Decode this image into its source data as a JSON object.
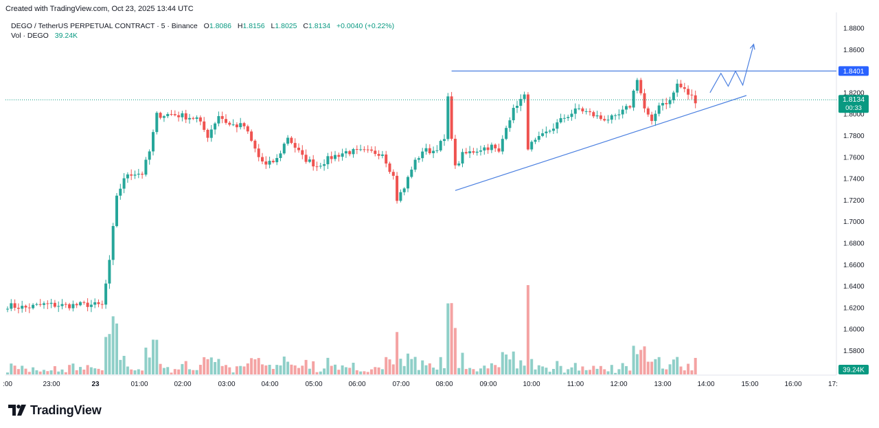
{
  "header": {
    "created_by": "Created with TradingView.com, Oct 23, 2025 13:44 UTC"
  },
  "legend": {
    "symbol": "DEGO / TetherUS PERPETUAL CONTRACT · 5 · Binance",
    "open_label": "O",
    "open_value": "1.8086",
    "high_label": "H",
    "high_value": "1.8156",
    "low_label": "L",
    "low_value": "1.8025",
    "close_label": "C",
    "close_value": "1.8134",
    "change": "+0.0040 (+0.22%)",
    "volume_label": "Vol · DEGO",
    "volume_value": "39.24K"
  },
  "colors": {
    "up": "#26a69a",
    "down": "#ef5350",
    "up_volume": "#8fcfc8",
    "down_volume": "#f4a3a3",
    "drawing": "#4a7fe0",
    "price_badge_blue": "#2962ff",
    "price_badge_green": "#089981"
  },
  "price_badges": {
    "resistance": "1.8401",
    "last_price": "1.8134",
    "countdown": "00:33",
    "volume": "39.24K"
  },
  "brand": {
    "name": "TradingView"
  },
  "chart_data": {
    "type": "candlestick",
    "timeframe": "5",
    "y_axis": {
      "ticks": [
        "1.8800",
        "1.8600",
        "1.8200",
        "1.8000",
        "1.7800",
        "1.7600",
        "1.7400",
        "1.7200",
        "1.7000",
        "1.6800",
        "1.6600",
        "1.6400",
        "1.6200",
        "1.6000",
        "1.5800"
      ],
      "range": [
        1.5654,
        1.8882
      ]
    },
    "x_axis": {
      "ticks": [
        ":00",
        "23:00",
        "23",
        "01:00",
        "02:00",
        "03:00",
        "04:00",
        "05:00",
        "06:00",
        "07:00",
        "08:00",
        "09:00",
        "10:00",
        "11:00",
        "12:00",
        "13:00",
        "14:00",
        "15:00",
        "16:00",
        "17:"
      ],
      "bold_ticks": [
        "23"
      ]
    },
    "anchors": [
      [
        "21:55",
        1.622
      ],
      [
        "22:20",
        1.62
      ],
      [
        "22:45",
        1.623
      ],
      [
        "23:15",
        1.622
      ],
      [
        "23:45",
        1.623
      ],
      [
        "00:05",
        1.622
      ],
      [
        "00:15",
        1.662
      ],
      [
        "00:25",
        1.725
      ],
      [
        "00:40",
        1.745
      ],
      [
        "01:00",
        1.745
      ],
      [
        "01:10",
        1.765
      ],
      [
        "01:20",
        1.799
      ],
      [
        "01:40",
        1.8
      ],
      [
        "01:50",
        1.799
      ],
      [
        "02:15",
        1.796
      ],
      [
        "02:30",
        1.78
      ],
      [
        "02:45",
        1.799
      ],
      [
        "03:00",
        1.79
      ],
      [
        "03:20",
        1.789
      ],
      [
        "03:40",
        1.76
      ],
      [
        "03:50",
        1.752
      ],
      [
        "04:05",
        1.758
      ],
      [
        "04:20",
        1.779
      ],
      [
        "04:40",
        1.76
      ],
      [
        "05:00",
        1.752
      ],
      [
        "05:20",
        1.76
      ],
      [
        "05:40",
        1.765
      ],
      [
        "06:00",
        1.765
      ],
      [
        "06:30",
        1.764
      ],
      [
        "06:45",
        1.742
      ],
      [
        "06:50",
        1.721
      ],
      [
        "07:00",
        1.731
      ],
      [
        "07:10",
        1.75
      ],
      [
        "07:25",
        1.766
      ],
      [
        "07:40",
        1.766
      ],
      [
        "07:55",
        1.776
      ],
      [
        "08:00",
        1.814
      ],
      [
        "08:05",
        1.78
      ],
      [
        "08:10",
        1.75
      ],
      [
        "08:20",
        1.762
      ],
      [
        "08:45",
        1.768
      ],
      [
        "09:00",
        1.77
      ],
      [
        "09:10",
        1.764
      ],
      [
        "09:20",
        1.79
      ],
      [
        "09:35",
        1.81
      ],
      [
        "09:45",
        1.816
      ],
      [
        "09:50",
        1.77
      ],
      [
        "10:00",
        1.774
      ],
      [
        "10:20",
        1.785
      ],
      [
        "10:40",
        1.797
      ],
      [
        "11:00",
        1.805
      ],
      [
        "11:30",
        1.796
      ],
      [
        "11:50",
        1.796
      ],
      [
        "12:10",
        1.808
      ],
      [
        "12:20",
        1.834
      ],
      [
        "12:30",
        1.805
      ],
      [
        "12:40",
        1.791
      ],
      [
        "12:50",
        1.81
      ],
      [
        "13:05",
        1.812
      ],
      [
        "13:15",
        1.828
      ],
      [
        "13:30",
        1.819
      ],
      [
        "13:40",
        1.813
      ]
    ],
    "drawings": {
      "resistance_line": {
        "from": [
          "08:00",
          1.8401
        ],
        "to": [
          "17:00",
          1.8401
        ],
        "label": "1.8401"
      },
      "rising_trendline": {
        "from": [
          "08:05",
          1.729
        ],
        "to": [
          "14:45",
          1.8174
        ]
      },
      "projection_path": [
        [
          "13:55",
          1.82
        ],
        [
          "14:10",
          1.838
        ],
        [
          "14:20",
          1.826
        ],
        [
          "14:30",
          1.84
        ],
        [
          "14:40",
          1.827
        ],
        [
          "14:55",
          1.865
        ]
      ]
    }
  }
}
